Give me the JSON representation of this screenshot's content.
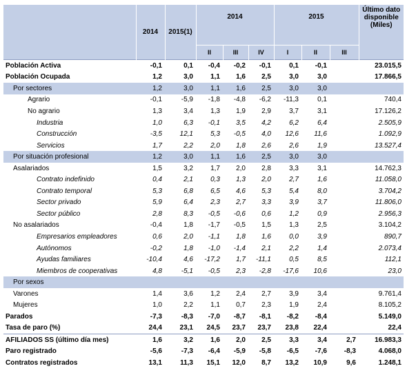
{
  "header": {
    "y2014": "2014",
    "y2015": "2015(1)",
    "group2014": "2014",
    "group2015": "2015",
    "latest_line1": "Último dato",
    "latest_line2": "disponible",
    "latest_line3": "(Miles)",
    "q2014": [
      "II",
      "III",
      "IV"
    ],
    "q2015": [
      "I",
      "II",
      "III"
    ]
  },
  "rows": [
    {
      "label": "Población Activa",
      "values": [
        "-0,1",
        "0,1",
        "-0,4",
        "-0,2",
        "-0,1",
        "0,1",
        "-0,1",
        "",
        "23.015,5"
      ]
    },
    {
      "label": "Población Ocupada",
      "values": [
        "1,2",
        "3,0",
        "1,1",
        "1,6",
        "2,5",
        "3,0",
        "3,0",
        "",
        "17.866,5"
      ]
    },
    {
      "label": "Por sectores",
      "values": [
        "1,2",
        "3,0",
        "1,1",
        "1,6",
        "2,5",
        "3,0",
        "3,0",
        "",
        ""
      ]
    },
    {
      "label": "Agrario",
      "values": [
        "-0,1",
        "-5,9",
        "-1,8",
        "-4,8",
        "-6,2",
        "-11,3",
        "0,1",
        "",
        "740,4"
      ]
    },
    {
      "label": "No agrario",
      "values": [
        "1,3",
        "3,4",
        "1,3",
        "1,9",
        "2,9",
        "3,7",
        "3,1",
        "",
        "17.126,2"
      ]
    },
    {
      "label": "Industria",
      "values": [
        "1,0",
        "6,3",
        "-0,1",
        "3,5",
        "4,2",
        "6,2",
        "6,4",
        "",
        "2.505,9"
      ]
    },
    {
      "label": "Construcción",
      "values": [
        "-3,5",
        "12,1",
        "5,3",
        "-0,5",
        "4,0",
        "12,6",
        "11,6",
        "",
        "1.092,9"
      ]
    },
    {
      "label": "Servicios",
      "values": [
        "1,7",
        "2,2",
        "2,0",
        "1,8",
        "2,6",
        "2,6",
        "1,9",
        "",
        "13.527,4"
      ]
    },
    {
      "label": "Por situación profesional",
      "values": [
        "1,2",
        "3,0",
        "1,1",
        "1,6",
        "2,5",
        "3,0",
        "3,0",
        "",
        ""
      ]
    },
    {
      "label": "Asalariados",
      "values": [
        "1,5",
        "3,2",
        "1,7",
        "2,0",
        "2,8",
        "3,3",
        "3,1",
        "",
        "14.762,3"
      ]
    },
    {
      "label": "Contrato indefinido",
      "values": [
        "0,4",
        "2,1",
        "0,3",
        "1,3",
        "2,0",
        "2,7",
        "1,6",
        "",
        "11.058,0"
      ]
    },
    {
      "label": "Contrato temporal",
      "values": [
        "5,3",
        "6,8",
        "6,5",
        "4,6",
        "5,3",
        "5,4",
        "8,0",
        "",
        "3.704,2"
      ]
    },
    {
      "label": "Sector privado",
      "values": [
        "5,9",
        "6,4",
        "2,3",
        "2,7",
        "3,3",
        "3,9",
        "3,7",
        "",
        "11.806,0"
      ]
    },
    {
      "label": "Sector público",
      "values": [
        "2,8",
        "8,3",
        "-0,5",
        "-0,6",
        "0,6",
        "1,2",
        "0,9",
        "",
        "2.956,3"
      ]
    },
    {
      "label": "No asalariados",
      "values": [
        "-0,4",
        "1,8",
        "-1,7",
        "-0,5",
        "1,5",
        "1,3",
        "2,5",
        "",
        "3.104,2"
      ]
    },
    {
      "label": "Empresarios empleadores",
      "values": [
        "0,6",
        "2,0",
        "-1,1",
        "1,8",
        "1,6",
        "0,0",
        "3,9",
        "",
        "890,7"
      ]
    },
    {
      "label": "Autónomos",
      "values": [
        "-0,2",
        "1,8",
        "-1,0",
        "-1,4",
        "2,1",
        "2,2",
        "1,4",
        "",
        "2.073,4"
      ]
    },
    {
      "label": "Ayudas familiares",
      "values": [
        "-10,4",
        "4,6",
        "-17,2",
        "1,7",
        "-11,1",
        "0,5",
        "8,5",
        "",
        "112,1"
      ]
    },
    {
      "label": "Miembros de cooperativas",
      "values": [
        "4,8",
        "-5,1",
        "-0,5",
        "2,3",
        "-2,8",
        "-17,6",
        "10,6",
        "",
        "23,0"
      ]
    },
    {
      "label": "Por sexos",
      "values": [
        "",
        "",
        "",
        "",
        "",
        "",
        "",
        "",
        ""
      ]
    },
    {
      "label": "Varones",
      "values": [
        "1,4",
        "3,6",
        "1,2",
        "2,4",
        "2,7",
        "3,9",
        "3,4",
        "",
        "9.761,4"
      ]
    },
    {
      "label": "Mujeres",
      "values": [
        "1,0",
        "2,2",
        "1,1",
        "0,7",
        "2,3",
        "1,9",
        "2,4",
        "",
        "8.105,2"
      ]
    },
    {
      "label": "Parados",
      "values": [
        "-7,3",
        "-8,3",
        "-7,0",
        "-8,7",
        "-8,1",
        "-8,2",
        "-8,4",
        "",
        "5.149,0"
      ]
    },
    {
      "label": "Tasa de paro (%)",
      "values": [
        "24,4",
        "23,1",
        "24,5",
        "23,7",
        "23,7",
        "23,8",
        "22,4",
        "",
        "22,4"
      ]
    },
    {
      "label": "AFILIADOS SS (último día mes)",
      "values": [
        "1,6",
        "3,2",
        "1,6",
        "2,0",
        "2,5",
        "3,3",
        "3,4",
        "2,7",
        "16.983,3"
      ]
    },
    {
      "label": "Paro registrado",
      "values": [
        "-5,6",
        "-7,3",
        "-6,4",
        "-5,9",
        "-5,8",
        "-6,5",
        "-7,6",
        "-8,3",
        "4.068,0"
      ]
    },
    {
      "label": "Contratos registrados",
      "values": [
        "13,1",
        "11,3",
        "15,1",
        "12,0",
        "8,7",
        "13,2",
        "10,9",
        "9,6",
        "1.248,1"
      ]
    }
  ]
}
